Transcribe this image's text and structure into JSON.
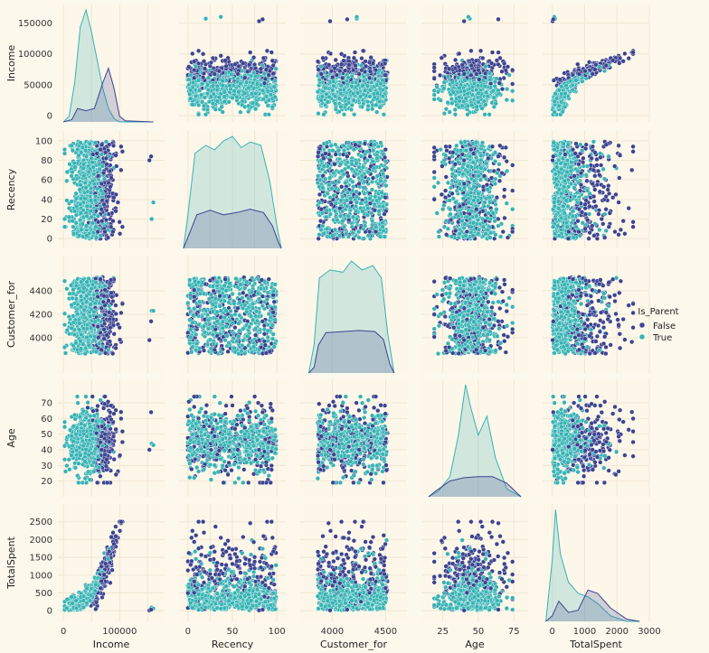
{
  "chart_data": {
    "type": "scatter",
    "kind": "pairplot",
    "variables": [
      "Income",
      "Recency",
      "Customer_for",
      "Age",
      "TotalSpent"
    ],
    "hue": "Is_Parent",
    "hue_levels": [
      {
        "name": "False",
        "color": "#3c4390"
      },
      {
        "name": "True",
        "color": "#36b3b4"
      }
    ],
    "grid": true,
    "legend_position": "right",
    "axes": {
      "Income": {
        "range": [
          -10000,
          180000
        ],
        "ticks": [
          0,
          50000,
          100000,
          150000
        ],
        "x_tick_labels": [
          "0",
          "",
          "100000",
          ""
        ],
        "y_tick_labels": [
          "0",
          "50000",
          "100000",
          "150000"
        ]
      },
      "Recency": {
        "range": [
          -10,
          110
        ],
        "ticks": [
          0,
          20,
          40,
          60,
          80,
          100
        ],
        "x_tick_labels": [
          "0",
          "",
          "50",
          "",
          "100"
        ],
        "x_ticks": [
          0,
          25,
          50,
          75,
          100
        ],
        "y_tick_labels": [
          "0",
          "20",
          "40",
          "60",
          "80",
          "100"
        ]
      },
      "Customer_for": {
        "range": [
          3700,
          4700
        ],
        "ticks": [
          3000,
          4000,
          4500
        ],
        "x_ticks": [
          4000,
          4500
        ],
        "x_tick_labels": [
          "4000",
          "4500"
        ],
        "y_ticks": [
          4000,
          4200,
          4400
        ],
        "y_tick_labels": [
          "4000",
          "4200",
          "4400"
        ]
      },
      "Age": {
        "range": [
          10,
          85
        ],
        "x_ticks": [
          25,
          50,
          75
        ],
        "x_tick_labels": [
          "25",
          "50",
          "75"
        ],
        "y_ticks": [
          20,
          30,
          40,
          50,
          60,
          70
        ],
        "y_tick_labels": [
          "20",
          "30",
          "40",
          "50",
          "60",
          "70"
        ]
      },
      "TotalSpent": {
        "range": [
          -300,
          3000
        ],
        "x_ticks": [
          0,
          1000,
          2000,
          3000
        ],
        "x_tick_labels": [
          "0",
          "1000",
          "2000",
          "3000"
        ],
        "y_ticks": [
          0,
          500,
          1000,
          1500,
          2000,
          2500
        ],
        "y_tick_labels": [
          "0",
          "500",
          "1000",
          "1500",
          "2000",
          "2500"
        ]
      }
    },
    "diagonal_kde": {
      "Income": {
        "False": [
          [
            0,
            0
          ],
          [
            15000,
            0.02
          ],
          [
            25000,
            0.12
          ],
          [
            40000,
            0.1
          ],
          [
            55000,
            0.12
          ],
          [
            70000,
            0.35
          ],
          [
            80000,
            0.48
          ],
          [
            90000,
            0.3
          ],
          [
            100000,
            0.05
          ],
          [
            110000,
            0.01
          ],
          [
            160000,
            0
          ]
        ],
        "True": [
          [
            0,
            0
          ],
          [
            10000,
            0.05
          ],
          [
            20000,
            0.35
          ],
          [
            30000,
            0.85
          ],
          [
            40000,
            1.0
          ],
          [
            50000,
            0.8
          ],
          [
            60000,
            0.55
          ],
          [
            70000,
            0.3
          ],
          [
            80000,
            0.12
          ],
          [
            90000,
            0.03
          ],
          [
            100000,
            0
          ],
          [
            160000,
            0
          ]
        ]
      },
      "Recency": {
        "False": [
          [
            -5,
            0
          ],
          [
            0,
            0.1
          ],
          [
            10,
            0.3
          ],
          [
            25,
            0.34
          ],
          [
            40,
            0.3
          ],
          [
            55,
            0.32
          ],
          [
            70,
            0.35
          ],
          [
            85,
            0.32
          ],
          [
            95,
            0.2
          ],
          [
            102,
            0.05
          ],
          [
            105,
            0
          ]
        ],
        "True": [
          [
            -5,
            0
          ],
          [
            0,
            0.3
          ],
          [
            8,
            0.85
          ],
          [
            20,
            0.92
          ],
          [
            30,
            0.88
          ],
          [
            40,
            0.96
          ],
          [
            50,
            1.0
          ],
          [
            60,
            0.9
          ],
          [
            70,
            0.95
          ],
          [
            82,
            0.92
          ],
          [
            92,
            0.6
          ],
          [
            100,
            0.2
          ],
          [
            105,
            0
          ]
        ]
      },
      "Customer_for": {
        "False": [
          [
            3780,
            0
          ],
          [
            3830,
            0.05
          ],
          [
            3870,
            0.25
          ],
          [
            3940,
            0.36
          ],
          [
            4100,
            0.37
          ],
          [
            4250,
            0.38
          ],
          [
            4400,
            0.37
          ],
          [
            4480,
            0.3
          ],
          [
            4540,
            0.08
          ],
          [
            4580,
            0
          ]
        ],
        "True": [
          [
            3780,
            0
          ],
          [
            3830,
            0.25
          ],
          [
            3880,
            0.85
          ],
          [
            3980,
            0.92
          ],
          [
            4100,
            0.9
          ],
          [
            4180,
            1.0
          ],
          [
            4280,
            0.92
          ],
          [
            4380,
            0.96
          ],
          [
            4460,
            0.85
          ],
          [
            4520,
            0.35
          ],
          [
            4580,
            0
          ]
        ]
      },
      "Age": {
        "False": [
          [
            15,
            0
          ],
          [
            20,
            0.05
          ],
          [
            30,
            0.14
          ],
          [
            40,
            0.17
          ],
          [
            50,
            0.18
          ],
          [
            60,
            0.18
          ],
          [
            70,
            0.12
          ],
          [
            80,
            0
          ]
        ],
        "True": [
          [
            15,
            0
          ],
          [
            22,
            0.05
          ],
          [
            30,
            0.18
          ],
          [
            36,
            0.55
          ],
          [
            41,
            1.0
          ],
          [
            45,
            0.78
          ],
          [
            50,
            0.55
          ],
          [
            56,
            0.72
          ],
          [
            62,
            0.35
          ],
          [
            70,
            0.07
          ],
          [
            80,
            0
          ]
        ]
      },
      "TotalSpent": {
        "False": [
          [
            -200,
            0
          ],
          [
            0,
            0.05
          ],
          [
            200,
            0.18
          ],
          [
            500,
            0.08
          ],
          [
            800,
            0.1
          ],
          [
            1100,
            0.28
          ],
          [
            1400,
            0.25
          ],
          [
            1800,
            0.12
          ],
          [
            2300,
            0.02
          ],
          [
            2700,
            0
          ]
        ],
        "True": [
          [
            -200,
            0
          ],
          [
            0,
            0.55
          ],
          [
            100,
            1.0
          ],
          [
            250,
            0.6
          ],
          [
            500,
            0.35
          ],
          [
            800,
            0.25
          ],
          [
            1100,
            0.22
          ],
          [
            1400,
            0.16
          ],
          [
            1800,
            0.05
          ],
          [
            2300,
            0
          ],
          [
            2700,
            0
          ]
        ]
      }
    },
    "outliers": [
      {
        "Income": 157000,
        "Recency": 20,
        "Customer_for": 4230,
        "Age": 44,
        "TotalSpent": 90,
        "Is_Parent": "True"
      },
      {
        "Income": 160000,
        "Recency": 37,
        "Customer_for": 4230,
        "Age": 43,
        "TotalSpent": 60,
        "Is_Parent": "True"
      },
      {
        "Income": 153000,
        "Recency": 80,
        "Customer_for": 3980,
        "Age": 40,
        "TotalSpent": 10,
        "Is_Parent": "False"
      },
      {
        "Income": 156000,
        "Recency": 84,
        "Customer_for": 4140,
        "Age": 64,
        "TotalSpent": 30,
        "Is_Parent": "False"
      }
    ]
  },
  "legend": {
    "title": "Is_Parent",
    "items": [
      "False",
      "True"
    ]
  }
}
